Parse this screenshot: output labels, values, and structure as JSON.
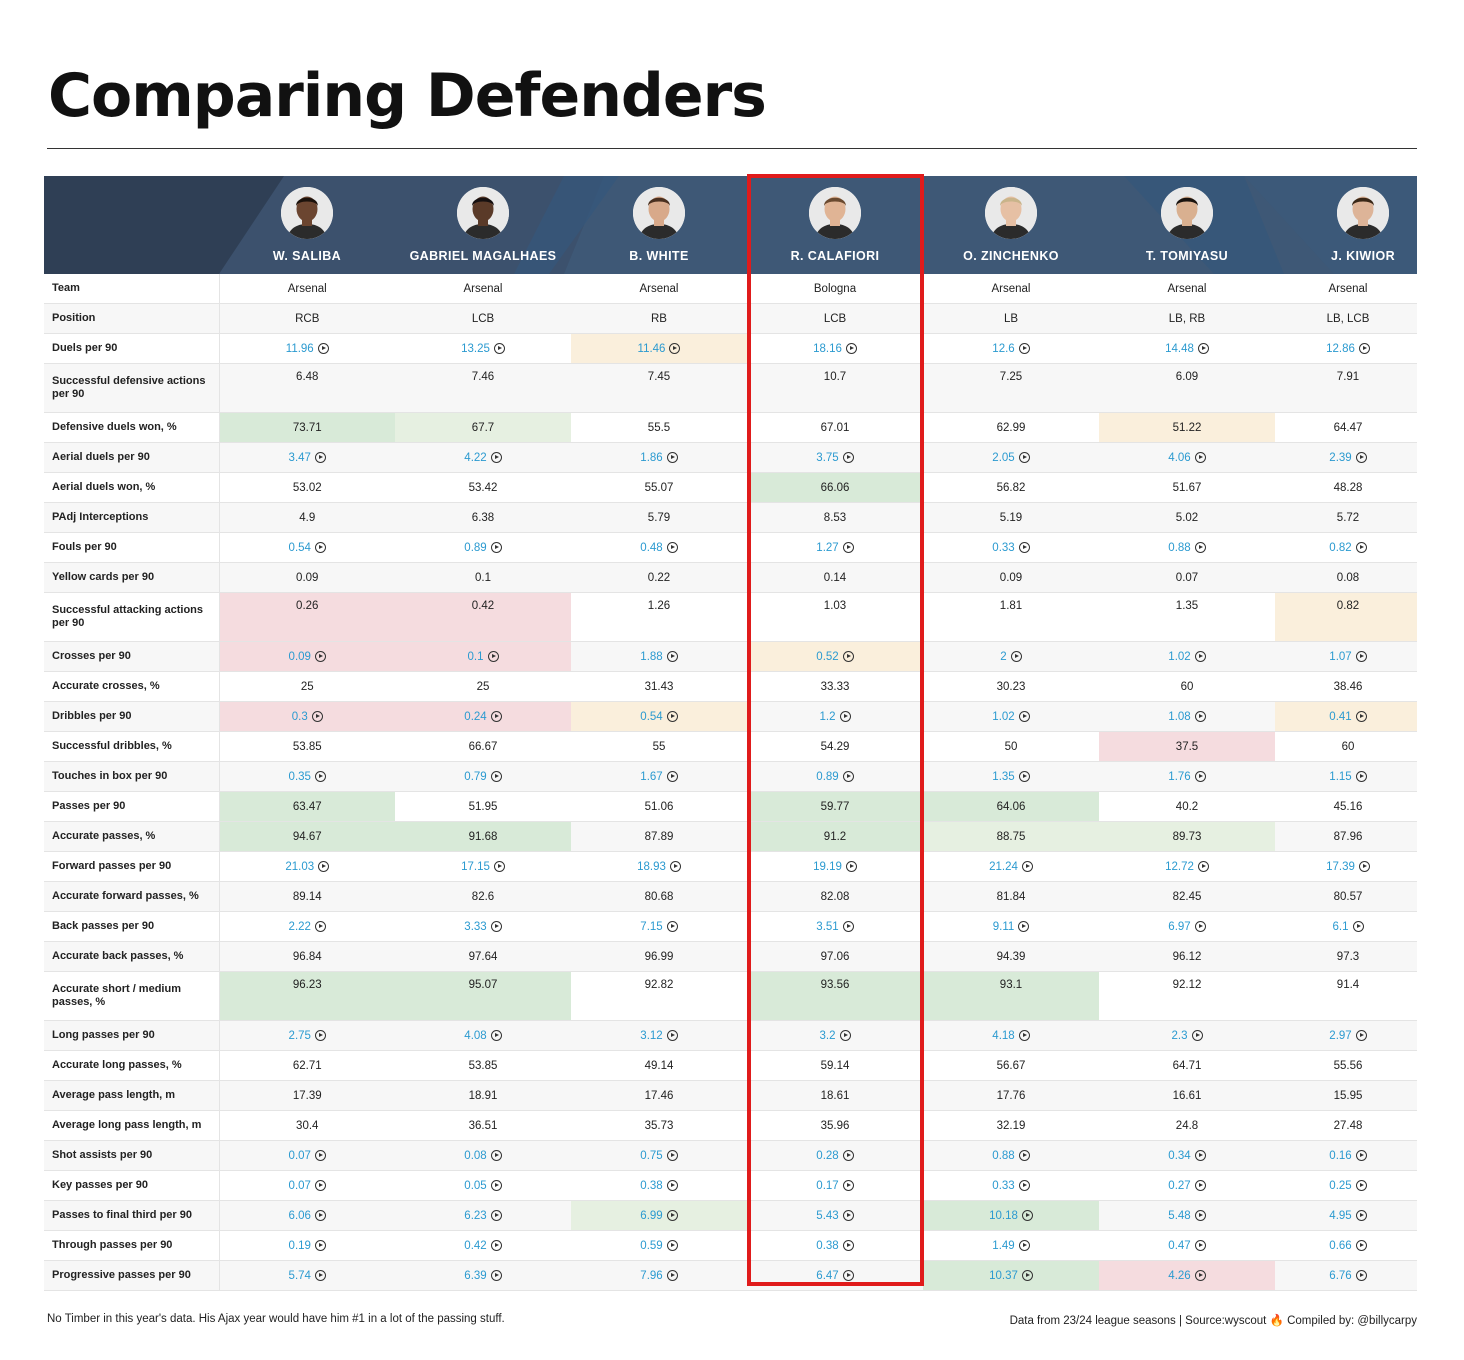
{
  "title": "Comparing Defenders",
  "players": [
    {
      "name": "W. SALIBA",
      "skin": "#6b4530",
      "hair": "#1c120c"
    },
    {
      "name": "GABRIEL MAGALHAES",
      "skin": "#5a3a28",
      "hair": "#161010"
    },
    {
      "name": "B. WHITE",
      "skin": "#d8a98a",
      "hair": "#4a3020"
    },
    {
      "name": "R. CALAFIORI",
      "skin": "#e0b495",
      "hair": "#6a4a30"
    },
    {
      "name": "O. ZINCHENKO",
      "skin": "#e6c0a4",
      "hair": "#c9b48a"
    },
    {
      "name": "T. TOMIYASU",
      "skin": "#d9b090",
      "hair": "#1a1410"
    },
    {
      "name": "J. KIWIOR",
      "skin": "#ddb498",
      "hair": "#3a2818"
    }
  ],
  "rows": [
    {
      "metric": "Team",
      "cells": [
        {
          "v": "Arsenal"
        },
        {
          "v": "Arsenal"
        },
        {
          "v": "Arsenal"
        },
        {
          "v": "Bologna"
        },
        {
          "v": "Arsenal"
        },
        {
          "v": "Arsenal"
        },
        {
          "v": "Arsenal"
        }
      ]
    },
    {
      "metric": "Position",
      "cells": [
        {
          "v": "RCB"
        },
        {
          "v": "LCB"
        },
        {
          "v": "RB"
        },
        {
          "v": "LCB"
        },
        {
          "v": "LB"
        },
        {
          "v": "LB, RB"
        },
        {
          "v": "LB, LCB"
        }
      ]
    },
    {
      "metric": "Duels per 90",
      "link": true,
      "cells": [
        {
          "v": "11.96"
        },
        {
          "v": "13.25"
        },
        {
          "v": "11.46",
          "h": "o"
        },
        {
          "v": "18.16"
        },
        {
          "v": "12.6"
        },
        {
          "v": "14.48"
        },
        {
          "v": "12.86"
        }
      ]
    },
    {
      "metric": "Successful defensive actions per 90",
      "tall": true,
      "cells": [
        {
          "v": "6.48"
        },
        {
          "v": "7.46"
        },
        {
          "v": "7.45"
        },
        {
          "v": "10.7"
        },
        {
          "v": "7.25"
        },
        {
          "v": "6.09"
        },
        {
          "v": "7.91"
        }
      ]
    },
    {
      "metric": "Defensive duels won, %",
      "cells": [
        {
          "v": "73.71",
          "h": "g1"
        },
        {
          "v": "67.7",
          "h": "g2"
        },
        {
          "v": "55.5"
        },
        {
          "v": "67.01"
        },
        {
          "v": "62.99"
        },
        {
          "v": "51.22",
          "h": "o"
        },
        {
          "v": "64.47"
        }
      ]
    },
    {
      "metric": "Aerial duels per 90",
      "link": true,
      "cells": [
        {
          "v": "3.47"
        },
        {
          "v": "4.22"
        },
        {
          "v": "1.86"
        },
        {
          "v": "3.75"
        },
        {
          "v": "2.05"
        },
        {
          "v": "4.06"
        },
        {
          "v": "2.39"
        }
      ]
    },
    {
      "metric": "Aerial duels won, %",
      "cells": [
        {
          "v": "53.02"
        },
        {
          "v": "53.42"
        },
        {
          "v": "55.07"
        },
        {
          "v": "66.06",
          "h": "g1"
        },
        {
          "v": "56.82"
        },
        {
          "v": "51.67"
        },
        {
          "v": "48.28"
        }
      ]
    },
    {
      "metric": "PAdj Interceptions",
      "cells": [
        {
          "v": "4.9"
        },
        {
          "v": "6.38"
        },
        {
          "v": "5.79"
        },
        {
          "v": "8.53"
        },
        {
          "v": "5.19"
        },
        {
          "v": "5.02"
        },
        {
          "v": "5.72"
        }
      ]
    },
    {
      "metric": "Fouls per 90",
      "link": true,
      "cells": [
        {
          "v": "0.54"
        },
        {
          "v": "0.89"
        },
        {
          "v": "0.48"
        },
        {
          "v": "1.27"
        },
        {
          "v": "0.33"
        },
        {
          "v": "0.88"
        },
        {
          "v": "0.82"
        }
      ]
    },
    {
      "metric": "Yellow cards per 90",
      "cells": [
        {
          "v": "0.09"
        },
        {
          "v": "0.1"
        },
        {
          "v": "0.22"
        },
        {
          "v": "0.14"
        },
        {
          "v": "0.09"
        },
        {
          "v": "0.07"
        },
        {
          "v": "0.08"
        }
      ]
    },
    {
      "metric": "Successful attacking actions per 90",
      "tall": true,
      "cells": [
        {
          "v": "0.26",
          "h": "r"
        },
        {
          "v": "0.42",
          "h": "r"
        },
        {
          "v": "1.26"
        },
        {
          "v": "1.03"
        },
        {
          "v": "1.81"
        },
        {
          "v": "1.35"
        },
        {
          "v": "0.82",
          "h": "o"
        }
      ]
    },
    {
      "metric": "Crosses per 90",
      "link": true,
      "cells": [
        {
          "v": "0.09",
          "h": "r"
        },
        {
          "v": "0.1",
          "h": "r"
        },
        {
          "v": "1.88"
        },
        {
          "v": "0.52",
          "h": "o"
        },
        {
          "v": "2"
        },
        {
          "v": "1.02"
        },
        {
          "v": "1.07"
        }
      ]
    },
    {
      "metric": "Accurate crosses, %",
      "cells": [
        {
          "v": "25"
        },
        {
          "v": "25"
        },
        {
          "v": "31.43"
        },
        {
          "v": "33.33"
        },
        {
          "v": "30.23"
        },
        {
          "v": "60"
        },
        {
          "v": "38.46"
        }
      ]
    },
    {
      "metric": "Dribbles per 90",
      "link": true,
      "cells": [
        {
          "v": "0.3",
          "h": "r"
        },
        {
          "v": "0.24",
          "h": "r"
        },
        {
          "v": "0.54",
          "h": "o"
        },
        {
          "v": "1.2"
        },
        {
          "v": "1.02"
        },
        {
          "v": "1.08"
        },
        {
          "v": "0.41",
          "h": "o"
        }
      ]
    },
    {
      "metric": "Successful dribbles, %",
      "cells": [
        {
          "v": "53.85"
        },
        {
          "v": "66.67"
        },
        {
          "v": "55"
        },
        {
          "v": "54.29"
        },
        {
          "v": "50"
        },
        {
          "v": "37.5",
          "h": "r"
        },
        {
          "v": "60"
        }
      ]
    },
    {
      "metric": "Touches in box per 90",
      "link": true,
      "cells": [
        {
          "v": "0.35"
        },
        {
          "v": "0.79"
        },
        {
          "v": "1.67"
        },
        {
          "v": "0.89"
        },
        {
          "v": "1.35"
        },
        {
          "v": "1.76"
        },
        {
          "v": "1.15"
        }
      ]
    },
    {
      "metric": "Passes per 90",
      "cells": [
        {
          "v": "63.47",
          "h": "g1"
        },
        {
          "v": "51.95"
        },
        {
          "v": "51.06"
        },
        {
          "v": "59.77",
          "h": "g1"
        },
        {
          "v": "64.06",
          "h": "g1"
        },
        {
          "v": "40.2"
        },
        {
          "v": "45.16"
        }
      ]
    },
    {
      "metric": "Accurate passes, %",
      "cells": [
        {
          "v": "94.67",
          "h": "g1"
        },
        {
          "v": "91.68",
          "h": "g1"
        },
        {
          "v": "87.89"
        },
        {
          "v": "91.2",
          "h": "g1"
        },
        {
          "v": "88.75",
          "h": "g2"
        },
        {
          "v": "89.73",
          "h": "g2"
        },
        {
          "v": "87.96"
        }
      ]
    },
    {
      "metric": "Forward passes per 90",
      "link": true,
      "cells": [
        {
          "v": "21.03"
        },
        {
          "v": "17.15"
        },
        {
          "v": "18.93"
        },
        {
          "v": "19.19"
        },
        {
          "v": "21.24"
        },
        {
          "v": "12.72"
        },
        {
          "v": "17.39"
        }
      ]
    },
    {
      "metric": "Accurate forward passes, %",
      "cells": [
        {
          "v": "89.14"
        },
        {
          "v": "82.6"
        },
        {
          "v": "80.68"
        },
        {
          "v": "82.08"
        },
        {
          "v": "81.84"
        },
        {
          "v": "82.45"
        },
        {
          "v": "80.57"
        }
      ]
    },
    {
      "metric": "Back passes per 90",
      "link": true,
      "cells": [
        {
          "v": "2.22"
        },
        {
          "v": "3.33"
        },
        {
          "v": "7.15"
        },
        {
          "v": "3.51"
        },
        {
          "v": "9.11"
        },
        {
          "v": "6.97"
        },
        {
          "v": "6.1"
        }
      ]
    },
    {
      "metric": "Accurate back passes, %",
      "cells": [
        {
          "v": "96.84"
        },
        {
          "v": "97.64"
        },
        {
          "v": "96.99"
        },
        {
          "v": "97.06"
        },
        {
          "v": "94.39"
        },
        {
          "v": "96.12"
        },
        {
          "v": "97.3"
        }
      ]
    },
    {
      "metric": "Accurate short / medium passes, %",
      "tall": true,
      "cells": [
        {
          "v": "96.23",
          "h": "g1"
        },
        {
          "v": "95.07",
          "h": "g1"
        },
        {
          "v": "92.82"
        },
        {
          "v": "93.56",
          "h": "g1"
        },
        {
          "v": "93.1",
          "h": "g1"
        },
        {
          "v": "92.12"
        },
        {
          "v": "91.4"
        }
      ]
    },
    {
      "metric": "Long passes per 90",
      "link": true,
      "cells": [
        {
          "v": "2.75"
        },
        {
          "v": "4.08"
        },
        {
          "v": "3.12"
        },
        {
          "v": "3.2"
        },
        {
          "v": "4.18"
        },
        {
          "v": "2.3"
        },
        {
          "v": "2.97"
        }
      ]
    },
    {
      "metric": "Accurate long passes, %",
      "cells": [
        {
          "v": "62.71"
        },
        {
          "v": "53.85"
        },
        {
          "v": "49.14"
        },
        {
          "v": "59.14"
        },
        {
          "v": "56.67"
        },
        {
          "v": "64.71"
        },
        {
          "v": "55.56"
        }
      ]
    },
    {
      "metric": "Average pass length, m",
      "cells": [
        {
          "v": "17.39"
        },
        {
          "v": "18.91"
        },
        {
          "v": "17.46"
        },
        {
          "v": "18.61"
        },
        {
          "v": "17.76"
        },
        {
          "v": "16.61"
        },
        {
          "v": "15.95"
        }
      ]
    },
    {
      "metric": "Average long pass length, m",
      "cells": [
        {
          "v": "30.4"
        },
        {
          "v": "36.51"
        },
        {
          "v": "35.73"
        },
        {
          "v": "35.96"
        },
        {
          "v": "32.19"
        },
        {
          "v": "24.8"
        },
        {
          "v": "27.48"
        }
      ]
    },
    {
      "metric": "Shot assists per 90",
      "link": true,
      "cells": [
        {
          "v": "0.07"
        },
        {
          "v": "0.08"
        },
        {
          "v": "0.75"
        },
        {
          "v": "0.28"
        },
        {
          "v": "0.88"
        },
        {
          "v": "0.34"
        },
        {
          "v": "0.16"
        }
      ]
    },
    {
      "metric": "Key passes per 90",
      "link": true,
      "cells": [
        {
          "v": "0.07"
        },
        {
          "v": "0.05"
        },
        {
          "v": "0.38"
        },
        {
          "v": "0.17"
        },
        {
          "v": "0.33"
        },
        {
          "v": "0.27"
        },
        {
          "v": "0.25"
        }
      ]
    },
    {
      "metric": "Passes to final third per 90",
      "link": true,
      "cells": [
        {
          "v": "6.06"
        },
        {
          "v": "6.23"
        },
        {
          "v": "6.99",
          "h": "g2"
        },
        {
          "v": "5.43"
        },
        {
          "v": "10.18",
          "h": "g1"
        },
        {
          "v": "5.48"
        },
        {
          "v": "4.95"
        }
      ]
    },
    {
      "metric": "Through passes per 90",
      "link": true,
      "cells": [
        {
          "v": "0.19"
        },
        {
          "v": "0.42"
        },
        {
          "v": "0.59"
        },
        {
          "v": "0.38"
        },
        {
          "v": "1.49"
        },
        {
          "v": "0.47"
        },
        {
          "v": "0.66"
        }
      ]
    },
    {
      "metric": "Progressive passes per 90",
      "link": true,
      "cells": [
        {
          "v": "5.74"
        },
        {
          "v": "6.39"
        },
        {
          "v": "7.96"
        },
        {
          "v": "6.47"
        },
        {
          "v": "10.37",
          "h": "g1"
        },
        {
          "v": "4.26",
          "h": "r"
        },
        {
          "v": "6.76"
        }
      ]
    }
  ],
  "highlight_colors": {
    "g1": "#d8ead8",
    "g2": "#e6f0e1",
    "o": "#faefdc",
    "r": "#f5dcdf"
  },
  "footer": {
    "note": "No Timber in this year's data. His Ajax year would have him #1 in a lot of the passing stuff.",
    "source_prefix": "Data from 23/24 league seasons  |  Source:wyscout",
    "flame": "🔥",
    "credit": "Compiled by: @billycarpy"
  }
}
